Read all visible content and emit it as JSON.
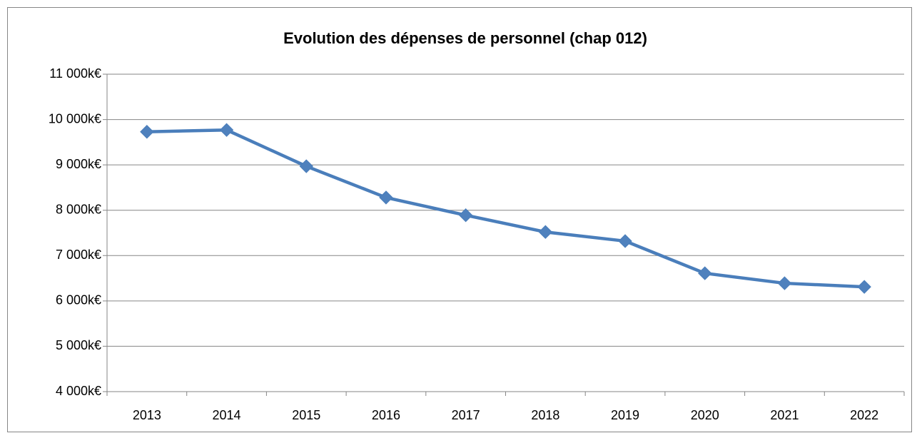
{
  "chart_data": {
    "type": "line",
    "title": "Evolution des dépenses de personnel (chap 012)",
    "categories": [
      "2013",
      "2014",
      "2015",
      "2016",
      "2017",
      "2018",
      "2019",
      "2020",
      "2021",
      "2022"
    ],
    "series": [
      {
        "name": "Dépenses de personnel",
        "color": "#4a7ebb",
        "values": [
          9730,
          9770,
          8970,
          8280,
          7890,
          7520,
          7320,
          6610,
          6390,
          6310
        ]
      }
    ],
    "ylim": [
      4000,
      11000
    ],
    "yticks": [
      {
        "value": 4000,
        "label": "4 000k€"
      },
      {
        "value": 5000,
        "label": "5 000k€"
      },
      {
        "value": 6000,
        "label": "6 000k€"
      },
      {
        "value": 7000,
        "label": "7 000k€"
      },
      {
        "value": 8000,
        "label": "8 000k€"
      },
      {
        "value": 9000,
        "label": "9 000k€"
      },
      {
        "value": 10000,
        "label": "10 000k€"
      },
      {
        "value": 11000,
        "label": "11 000k€"
      }
    ],
    "grid": true,
    "legend": false
  }
}
